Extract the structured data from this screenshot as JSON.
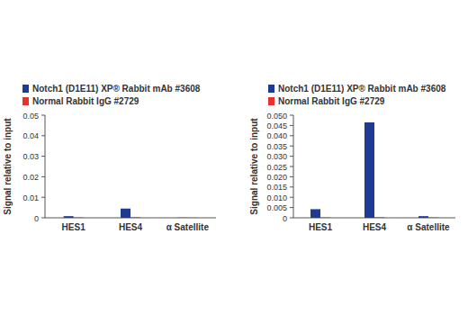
{
  "chart_data": [
    {
      "type": "bar",
      "y_label": "Signal relative to input",
      "categories": [
        "HES1",
        "HES4",
        "α Satellite"
      ],
      "series": [
        {
          "name": "Notch1 (D1E11) XP® Rabbit mAb #3608",
          "color": "#1f3a93",
          "values": [
            0.0008,
            0.0045,
            0.0001
          ]
        },
        {
          "name": "Normal Rabbit IgG #2729",
          "color": "#e8312f",
          "values": [
            0.0002,
            0.0003,
            0.0001
          ]
        }
      ],
      "ylim": [
        0,
        0.05
      ],
      "yticks": [
        0,
        0.01,
        0.02,
        0.03,
        0.04,
        0.05
      ],
      "legend": "top-left",
      "grid": false
    },
    {
      "type": "bar",
      "y_label": "Signal relative to input",
      "categories": [
        "HES1",
        "HES4",
        "α Satellite"
      ],
      "series": [
        {
          "name": "Notch1 (D1E11) XP® Rabbit mAb #3608",
          "color": "#1f3a93",
          "values": [
            0.0042,
            0.0465,
            0.0008
          ]
        },
        {
          "name": "Normal Rabbit IgG #2729",
          "color": "#e8312f",
          "values": [
            0.0002,
            0.0003,
            0.0002
          ]
        }
      ],
      "ylim": [
        0,
        0.05
      ],
      "yticks": [
        0,
        0.005,
        {
          "value": 0.01,
          "label": "0.010"
        },
        0.015,
        {
          "value": 0.02,
          "label": "0.020"
        },
        0.025,
        {
          "value": 0.03,
          "label": "0.030"
        },
        0.035,
        {
          "value": 0.04,
          "label": "0.040"
        },
        0.045,
        {
          "value": 0.05,
          "label": "0.050"
        }
      ],
      "legend": "top-left",
      "grid": false
    }
  ]
}
